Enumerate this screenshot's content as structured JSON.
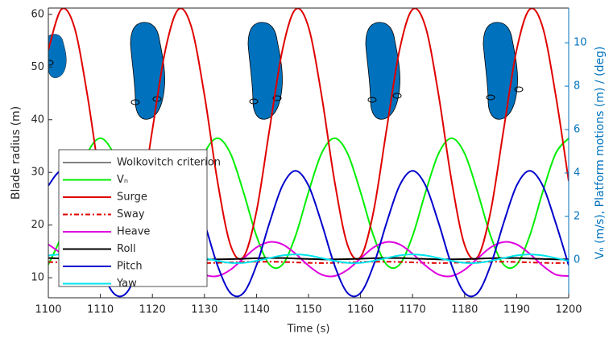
{
  "chart_data": {
    "type": "line",
    "xlabel": "Time (s)",
    "ylabel": "Blade radius (m)",
    "y2label": "Vₙ (m/s), Platform motions (m) / (deg)",
    "outline_label": "Wolkovitch criterion",
    "outline_color": "#000000",
    "xlim": [
      1100,
      1200
    ],
    "xticks": [
      1100,
      1110,
      1120,
      1130,
      1140,
      1150,
      1160,
      1170,
      1180,
      1190,
      1200
    ],
    "ylim": [
      6.2,
      61.2
    ],
    "yticks": [
      10,
      20,
      30,
      40,
      50,
      60
    ],
    "y2lim": [
      -1.75,
      11.6
    ],
    "y2ticks": [
      0,
      2,
      4,
      6,
      8,
      10
    ],
    "x": [
      1100,
      1102.5,
      1105,
      1107.5,
      1110,
      1112.5,
      1115,
      1117.5,
      1120,
      1122.5,
      1125,
      1127.5,
      1130,
      1132.5,
      1135,
      1137.5,
      1140,
      1142.5,
      1145,
      1147.5,
      1150,
      1152.5,
      1155,
      1157.5,
      1160,
      1162.5,
      1165,
      1167.5,
      1170,
      1172.5,
      1175,
      1177.5,
      1180,
      1182.5,
      1185,
      1187.5,
      1190,
      1192.5,
      1195,
      1197.5,
      1200
    ],
    "series": [
      {
        "name": "Vₙ",
        "color": "#00ee00",
        "axis": "y2",
        "values": [
          -0.22,
          1.1,
          3.12,
          4.9,
          5.6,
          4.9,
          3.12,
          1.1,
          -0.22,
          -0.22,
          1.1,
          3.12,
          4.9,
          5.6,
          4.9,
          3.12,
          1.1,
          -0.22,
          -0.22,
          1.1,
          3.12,
          4.9,
          5.6,
          4.9,
          3.12,
          1.1,
          -0.22,
          -0.22,
          1.1,
          3.12,
          4.9,
          5.6,
          4.9,
          3.12,
          1.1,
          -0.22,
          -0.22,
          1.1,
          3.12,
          4.9,
          5.6
        ]
      },
      {
        "name": "Surge",
        "color": "#e00000",
        "axis": "y2",
        "values": [
          9.68,
          11.54,
          10.72,
          7.59,
          3.63,
          0.68,
          0.13,
          2.23,
          6.0,
          9.68,
          11.54,
          10.72,
          7.59,
          3.63,
          0.68,
          0.13,
          2.23,
          6.0,
          9.68,
          11.54,
          10.72,
          7.59,
          3.63,
          0.68,
          0.13,
          2.23,
          6.0,
          9.68,
          11.54,
          10.72,
          7.59,
          3.63,
          0.68,
          0.13,
          2.23,
          6.0,
          9.68,
          11.54,
          10.72,
          7.59,
          3.63
        ]
      },
      {
        "name": "Sway",
        "color": "#e00000",
        "axis": "y2",
        "dash": "6 3 2 3",
        "values": [
          -0.1,
          -0.12,
          -0.14,
          -0.15,
          -0.14,
          -0.12,
          -0.1,
          -0.09,
          -0.09,
          -0.1,
          -0.12,
          -0.14,
          -0.15,
          -0.14,
          -0.12,
          -0.1,
          -0.09,
          -0.09,
          -0.1,
          -0.12,
          -0.14,
          -0.15,
          -0.14,
          -0.12,
          -0.1,
          -0.09,
          -0.09,
          -0.1,
          -0.12,
          -0.14,
          -0.15,
          -0.14,
          -0.12,
          -0.1,
          -0.09,
          -0.09,
          -0.1,
          -0.12,
          -0.14,
          -0.15,
          -0.14
        ]
      },
      {
        "name": "Heave",
        "color": "#e000e0",
        "axis": "y2",
        "values": [
          0.71,
          0.28,
          -0.27,
          -0.68,
          -0.75,
          -0.46,
          0.06,
          0.57,
          0.82,
          0.71,
          0.28,
          -0.27,
          -0.68,
          -0.75,
          -0.46,
          0.06,
          0.57,
          0.82,
          0.71,
          0.28,
          -0.27,
          -0.68,
          -0.75,
          -0.46,
          0.06,
          0.57,
          0.82,
          0.71,
          0.28,
          -0.27,
          -0.68,
          -0.75,
          -0.46,
          0.06,
          0.57,
          0.82,
          0.71,
          0.28,
          -0.27,
          -0.68,
          -0.75
        ]
      },
      {
        "name": "Roll",
        "color": "#000000",
        "axis": "y2",
        "values": [
          0.08,
          0.06,
          0.04,
          0.02,
          0.02,
          0.03,
          0.05,
          0.07,
          0.08,
          0.08,
          0.06,
          0.04,
          0.02,
          0.02,
          0.03,
          0.05,
          0.07,
          0.08,
          0.08,
          0.06,
          0.04,
          0.02,
          0.02,
          0.03,
          0.05,
          0.07,
          0.08,
          0.08,
          0.06,
          0.04,
          0.02,
          0.02,
          0.03,
          0.05,
          0.07,
          0.08,
          0.08,
          0.06,
          0.04,
          0.02,
          0.02
        ]
      },
      {
        "name": "Pitch",
        "color": "#0000cc",
        "axis": "y2",
        "values": [
          3.42,
          4.1,
          3.42,
          1.7,
          -0.25,
          -1.53,
          -1.53,
          -0.25,
          1.7,
          3.42,
          4.1,
          3.42,
          1.7,
          -0.25,
          -1.53,
          -1.53,
          -0.25,
          1.7,
          3.42,
          4.1,
          3.42,
          1.7,
          -0.25,
          -1.53,
          -1.53,
          -0.25,
          1.7,
          3.42,
          4.1,
          3.42,
          1.7,
          -0.25,
          -1.53,
          -1.53,
          -0.25,
          1.7,
          3.42,
          4.1,
          3.42,
          1.7,
          -0.25
        ]
      },
      {
        "name": "Yaw",
        "color": "#00e5ee",
        "axis": "y2",
        "values": [
          0.2,
          0.25,
          0.2,
          0.08,
          -0.05,
          -0.14,
          -0.14,
          -0.05,
          0.08,
          0.2,
          0.25,
          0.2,
          0.08,
          -0.05,
          -0.14,
          -0.14,
          -0.05,
          0.08,
          0.2,
          0.25,
          0.2,
          0.08,
          -0.05,
          -0.14,
          -0.14,
          -0.05,
          0.08,
          0.2,
          0.25,
          0.2,
          0.08,
          -0.05,
          -0.14,
          -0.14,
          -0.05,
          0.08,
          0.2,
          0.25,
          0.2,
          0.08,
          -0.05
        ]
      }
    ],
    "legend": "lower left"
  }
}
